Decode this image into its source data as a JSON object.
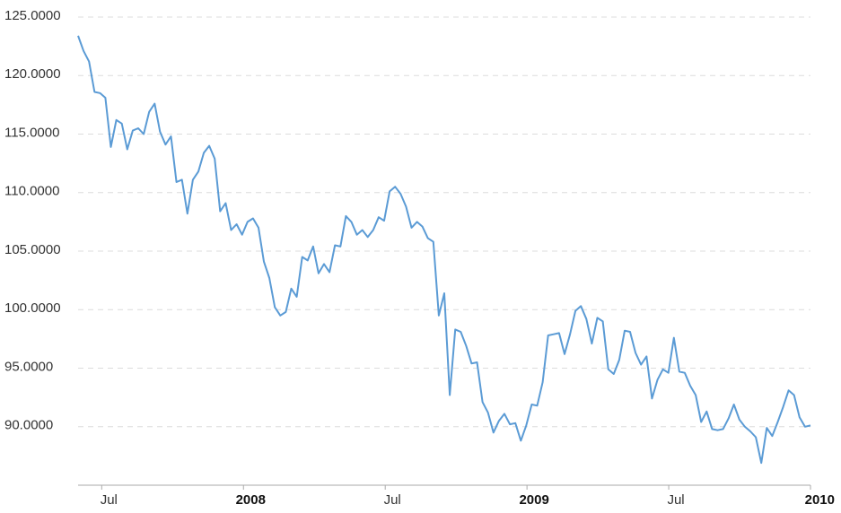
{
  "chart_data": {
    "type": "line",
    "xlim": [
      "2007-06",
      "2010-01"
    ],
    "xticks": [
      {
        "value": "2007-07",
        "label": "Jul"
      },
      {
        "value": "2008-01",
        "label": "2008"
      },
      {
        "value": "2008-07",
        "label": "Jul"
      },
      {
        "value": "2009-01",
        "label": "2009"
      },
      {
        "value": "2009-07",
        "label": "Jul"
      },
      {
        "value": "2010-01",
        "label": "2010"
      }
    ],
    "ylim": [
      85,
      125
    ],
    "yticks": [
      {
        "value": 90,
        "label": "90.0000"
      },
      {
        "value": 95,
        "label": "95.0000"
      },
      {
        "value": 100,
        "label": "100.0000"
      },
      {
        "value": 105,
        "label": "105.0000"
      },
      {
        "value": 110,
        "label": "110.0000"
      },
      {
        "value": 115,
        "label": "115.0000"
      },
      {
        "value": 120,
        "label": "120.0000"
      },
      {
        "value": 125,
        "label": "125.0000"
      }
    ],
    "grid": true,
    "color": "#5b9bd5",
    "values": [
      123.4,
      122.1,
      121.2,
      118.6,
      118.5,
      118.1,
      113.9,
      116.2,
      115.9,
      113.7,
      115.3,
      115.5,
      115.0,
      116.9,
      117.6,
      115.2,
      114.1,
      114.8,
      110.9,
      111.1,
      108.2,
      111.1,
      111.8,
      113.4,
      114.0,
      112.9,
      108.4,
      109.1,
      106.8,
      107.3,
      106.4,
      107.5,
      107.8,
      107.0,
      104.1,
      102.7,
      100.2,
      99.5,
      99.8,
      101.8,
      101.1,
      104.5,
      104.2,
      105.4,
      103.1,
      103.9,
      103.2,
      105.5,
      105.4,
      108.0,
      107.5,
      106.4,
      106.8,
      106.2,
      106.8,
      107.9,
      107.6,
      110.1,
      110.5,
      109.9,
      108.8,
      107.0,
      107.5,
      107.1,
      106.1,
      105.8,
      99.5,
      101.4,
      92.7,
      98.3,
      98.1,
      96.9,
      95.4,
      95.5,
      92.1,
      91.2,
      89.5,
      90.5,
      91.1,
      90.2,
      90.3,
      88.8,
      90.1,
      91.9,
      91.8,
      93.8,
      97.8,
      97.9,
      98.0,
      96.2,
      97.9,
      99.9,
      100.3,
      99.2,
      97.1,
      99.3,
      99.0,
      94.9,
      94.5,
      95.7,
      98.2,
      98.1,
      96.3,
      95.3,
      96.0,
      92.4,
      94.0,
      94.9,
      94.6,
      97.6,
      94.7,
      94.6,
      93.5,
      92.7,
      90.4,
      91.3,
      89.8,
      89.7,
      89.8,
      90.7,
      91.9,
      90.6,
      90.0,
      89.6,
      89.1,
      86.9,
      89.9,
      89.2,
      90.4,
      91.7,
      93.1,
      92.7,
      90.8,
      90.0,
      90.1
    ]
  }
}
